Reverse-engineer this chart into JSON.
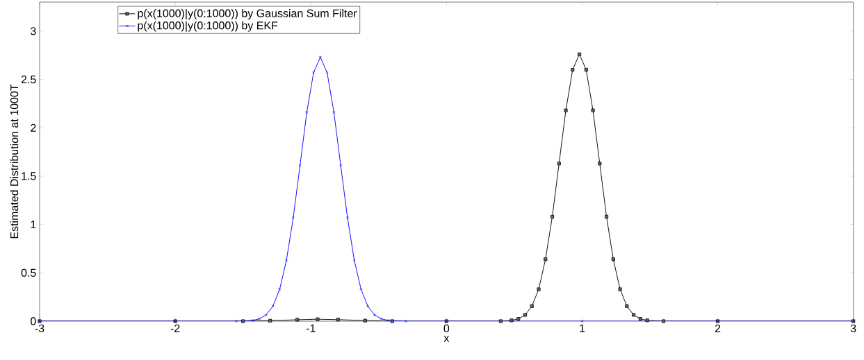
{
  "chart_data": {
    "type": "line",
    "xlabel": "x",
    "ylabel": "Estimated Distribution at 1000T",
    "xlim": [
      -3,
      3
    ],
    "ylim": [
      0,
      3.3
    ],
    "xticks": [
      -3,
      -2,
      -1,
      0,
      1,
      2,
      3
    ],
    "yticks": [
      0,
      0.5,
      1,
      1.5,
      2,
      2.5,
      3
    ],
    "grid": false,
    "legend": "top left",
    "line_style": "solid",
    "series": [
      {
        "name": "p(x(1000)|y(0:1000)) by Gaussian Sum Filter",
        "color": "#000000",
        "marker": "square",
        "x": [
          -3,
          -2,
          -1.5,
          -1.3,
          -1.1,
          -0.95,
          -0.8,
          -0.6,
          -0.4,
          0,
          0.4,
          0.48,
          0.53,
          0.58,
          0.63,
          0.68,
          0.73,
          0.78,
          0.83,
          0.88,
          0.93,
          0.98,
          1.03,
          1.08,
          1.13,
          1.18,
          1.23,
          1.28,
          1.33,
          1.38,
          1.43,
          1.48,
          1.6,
          2,
          3
        ],
        "values": [
          0,
          0,
          0,
          0.005,
          0.015,
          0.02,
          0.016,
          0.006,
          0,
          0,
          0,
          0.008,
          0.024,
          0.065,
          0.156,
          0.33,
          0.64,
          1.08,
          1.63,
          2.18,
          2.6,
          2.76,
          2.6,
          2.18,
          1.63,
          1.08,
          0.64,
          0.33,
          0.156,
          0.065,
          0.024,
          0.008,
          0,
          0,
          0
        ]
      },
      {
        "name": "p(x(1000)|y(0:1000)) by EKF",
        "color": "#0000ff",
        "marker": "cross",
        "x": [
          -3,
          -2,
          -1.55,
          -1.43,
          -1.38,
          -1.33,
          -1.28,
          -1.23,
          -1.18,
          -1.13,
          -1.08,
          -1.03,
          -0.98,
          -0.93,
          -0.88,
          -0.83,
          -0.78,
          -0.73,
          -0.68,
          -0.63,
          -0.58,
          -0.53,
          -0.48,
          -0.43,
          -0.3,
          0,
          1,
          2,
          3
        ],
        "values": [
          0,
          0,
          0,
          0.008,
          0.024,
          0.064,
          0.154,
          0.33,
          0.63,
          1.07,
          1.61,
          2.16,
          2.57,
          2.73,
          2.57,
          2.16,
          1.61,
          1.07,
          0.63,
          0.33,
          0.154,
          0.064,
          0.024,
          0.008,
          0,
          0,
          0,
          0,
          0
        ]
      }
    ]
  }
}
